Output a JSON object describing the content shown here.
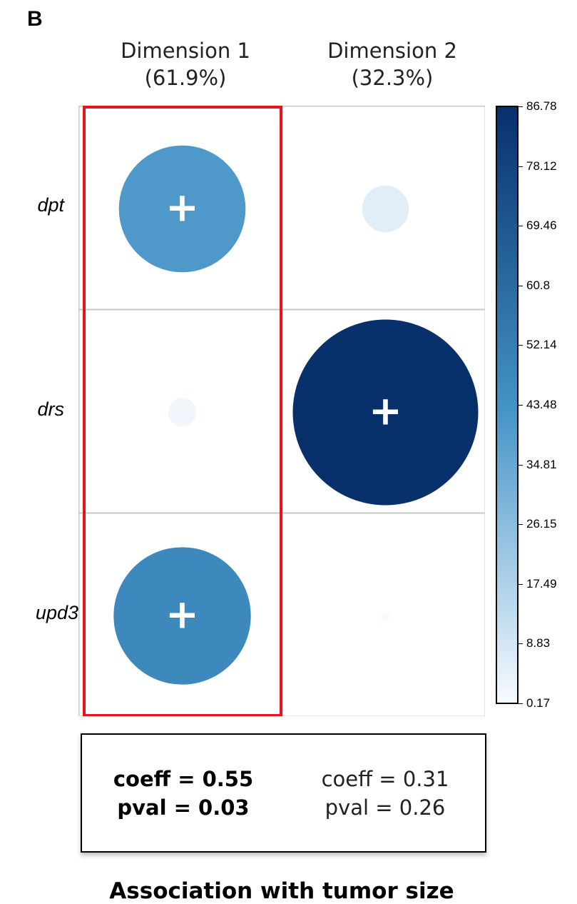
{
  "panel_label": "B",
  "chart_data": {
    "type": "heatmap",
    "columns": [
      {
        "name": "Dimension 1",
        "pct": "(61.9%)"
      },
      {
        "name": "Dimension 2",
        "pct": "(32.3%)"
      }
    ],
    "rows": [
      "dpt",
      "drs",
      "upd3"
    ],
    "values": [
      [
        40.5,
        5.5
      ],
      [
        2.0,
        86.78
      ],
      [
        47.5,
        0.17
      ]
    ],
    "signs": [
      [
        "+",
        ""
      ],
      [
        "",
        "+"
      ],
      [
        "+",
        ""
      ]
    ],
    "highlighted_column": 0,
    "colorbar": {
      "min": 0.17,
      "max": 86.78,
      "ticks": [
        "86.78",
        "78.12",
        "69.46",
        "60.8",
        "52.14",
        "43.48",
        "34.81",
        "26.15",
        "17.49",
        "8.83",
        "0.17"
      ]
    },
    "stats": [
      {
        "coeff": "coeff = 0.55",
        "pval": "pval = 0.03",
        "emphasis": true
      },
      {
        "coeff": "coeff = 0.31",
        "pval": "pval = 0.26",
        "emphasis": false
      }
    ],
    "caption": "Association with tumor size"
  },
  "colors": {
    "highlight": "#e8141c",
    "grid": "#c8c8c8",
    "scale_low": "#f7fbff",
    "scale_mid": "#4292c6",
    "scale_high": "#08306b"
  }
}
